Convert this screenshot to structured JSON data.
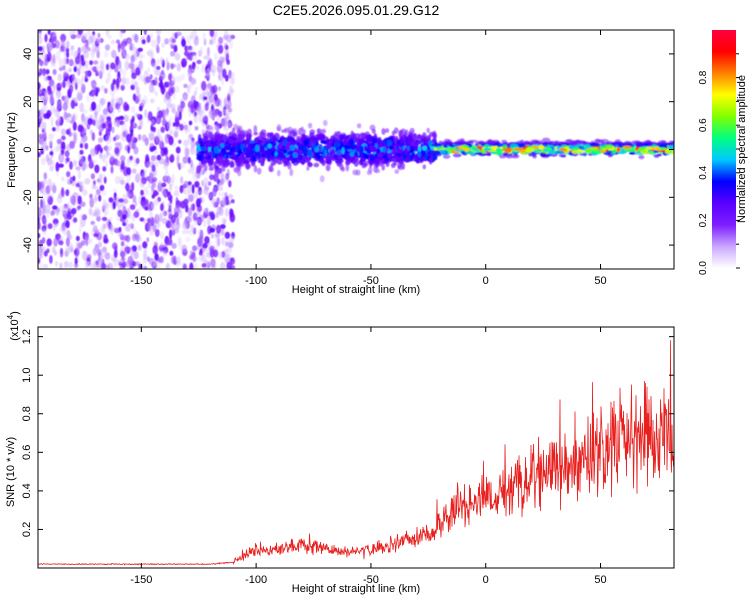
{
  "title": "C2E5.2026.095.01.29.G12",
  "chart_data": [
    {
      "type": "heatmap",
      "name": "spectrogram",
      "xlabel": "Height of straight line (km)",
      "ylabel": "Frequency (Hz)",
      "xlim": [
        -195,
        82
      ],
      "ylim": [
        -50,
        50
      ],
      "xticks": [
        -150,
        -100,
        -50,
        0,
        50
      ],
      "yticks": [
        -40,
        -20,
        0,
        20,
        40
      ],
      "colorbar": {
        "label": "Normalized spectral amplitude",
        "range": [
          0,
          1
        ],
        "ticks": [
          "0.0",
          "0.2",
          "0.4",
          "0.6",
          "0.8"
        ],
        "colors": [
          "#ffffff",
          "#c9a6ff",
          "#7d1dff",
          "#5a00ff",
          "#0000ff",
          "#00c8ff",
          "#00ff80",
          "#80ff00",
          "#ffff00",
          "#ff8000",
          "#ff0000",
          "#ff0040"
        ]
      },
      "regions": [
        {
          "x_range": [
            -195,
            -110
          ],
          "freq_range": [
            -50,
            50
          ],
          "amplitude_range": [
            0.0,
            0.2
          ],
          "description": "scattered low amplitude noise"
        },
        {
          "x_range": [
            -125,
            -22
          ],
          "freq_range": [
            -15,
            15
          ],
          "amplitude_range": [
            0.1,
            0.45
          ],
          "description": "broad band centred near 0 Hz"
        },
        {
          "x_range": [
            -22,
            82
          ],
          "freq_range": [
            -5,
            5
          ],
          "amplitude_range": [
            0.2,
            1.0
          ],
          "description": "narrow high amplitude band near 0 Hz"
        }
      ]
    },
    {
      "type": "line",
      "name": "snr",
      "xlabel": "Height of straight line (km)",
      "ylabel": "SNR (10 * v/v)",
      "y_multiplier": "(x10",
      "y_multiplier_exp": "4",
      "xlim": [
        -195,
        82
      ],
      "ylim": [
        0,
        1.25
      ],
      "xticks": [
        -150,
        -100,
        -50,
        0,
        50
      ],
      "yticks": [
        "0.2",
        "0.4",
        "0.6",
        "0.8",
        "1.0",
        "1.2"
      ],
      "series": [
        {
          "name": "SNR",
          "color": "#e8201e",
          "x": [
            -195,
            -180,
            -160,
            -140,
            -120,
            -110,
            -105,
            -100,
            -90,
            -80,
            -70,
            -60,
            -50,
            -40,
            -30,
            -25,
            -20,
            -15,
            -10,
            -5,
            0,
            5,
            10,
            20,
            30,
            40,
            50,
            60,
            70,
            75,
            80,
            82
          ],
          "y": [
            0.02,
            0.02,
            0.02,
            0.02,
            0.02,
            0.03,
            0.06,
            0.09,
            0.1,
            0.12,
            0.1,
            0.08,
            0.09,
            0.12,
            0.16,
            0.18,
            0.22,
            0.3,
            0.33,
            0.32,
            0.36,
            0.38,
            0.42,
            0.48,
            0.52,
            0.56,
            0.6,
            0.64,
            0.7,
            0.66,
            0.72,
            0.55
          ]
        }
      ]
    }
  ]
}
